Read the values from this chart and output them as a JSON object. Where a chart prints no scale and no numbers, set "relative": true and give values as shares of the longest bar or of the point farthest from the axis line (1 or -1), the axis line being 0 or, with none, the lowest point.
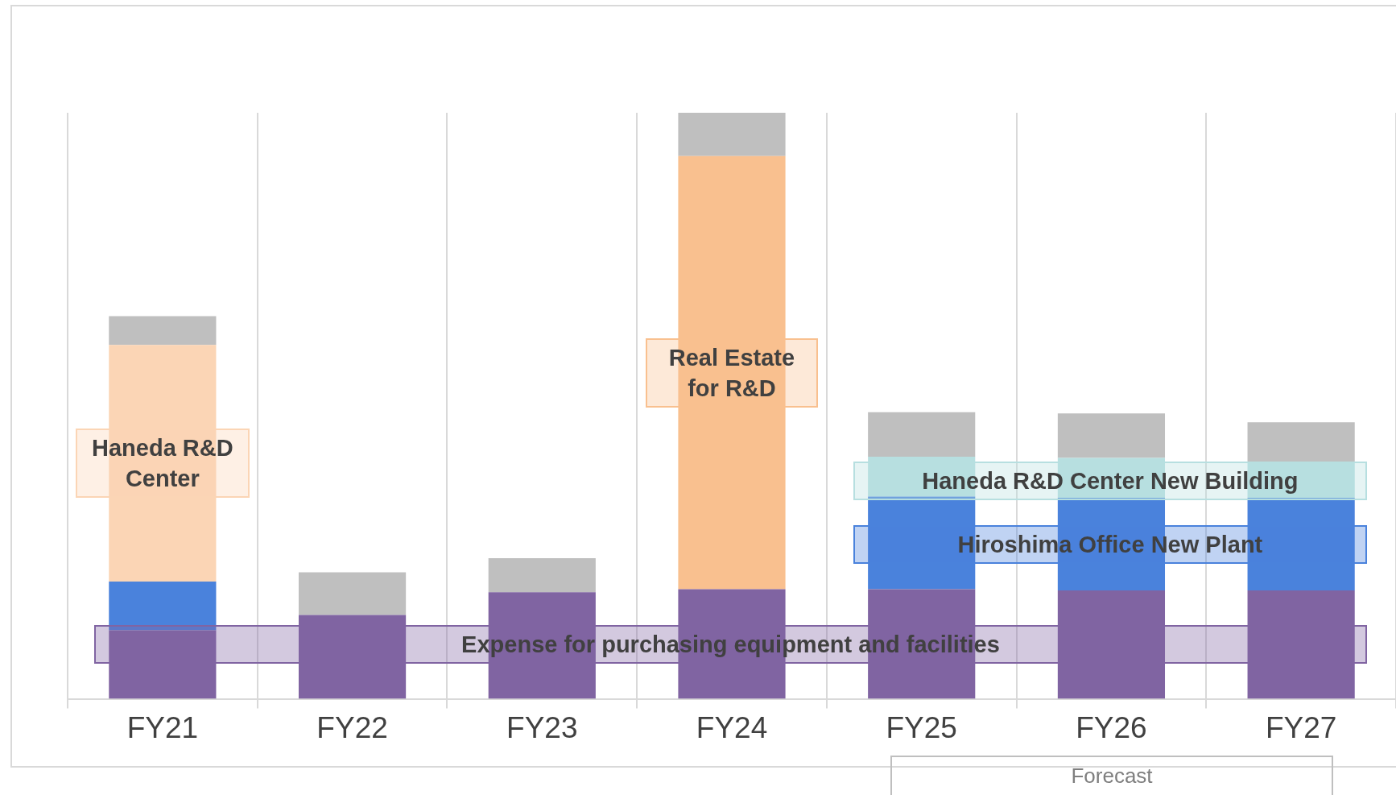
{
  "chart_data": {
    "type": "bar",
    "stacked": true,
    "relative": true,
    "grid": "x",
    "legend": false,
    "categories": [
      "FY21",
      "FY22",
      "FY23",
      "FY24",
      "FY25",
      "FY26",
      "FY27"
    ],
    "series": [
      {
        "name": "Expense for purchasing equipment and facilities",
        "color": "#8064a2",
        "values": [
          0.117,
          0.143,
          0.182,
          0.187,
          0.187,
          0.185,
          0.185
        ]
      },
      {
        "name": "Hiroshima Office New Plant",
        "color": "#4a82dc",
        "values": [
          0.083,
          null,
          null,
          null,
          0.158,
          0.158,
          0.158
        ]
      },
      {
        "name": "Haneda R&D Center",
        "color": "#fbd5b5",
        "values": [
          0.404,
          null,
          null,
          null,
          null,
          null,
          null
        ]
      },
      {
        "name": "Real Estate for R&D",
        "color": "#f9c08f",
        "values": [
          null,
          null,
          null,
          0.739,
          null,
          null,
          null
        ]
      },
      {
        "name": "Haneda R&D Center New Building",
        "color": "#b7dfe0",
        "values": [
          null,
          null,
          null,
          null,
          0.068,
          0.068,
          0.059
        ]
      },
      {
        "color": "#bfbfbf",
        "values": [
          0.049,
          0.073,
          0.058,
          0.074,
          0.076,
          0.076,
          0.07
        ]
      }
    ],
    "annotations": [
      "Forecast"
    ]
  }
}
